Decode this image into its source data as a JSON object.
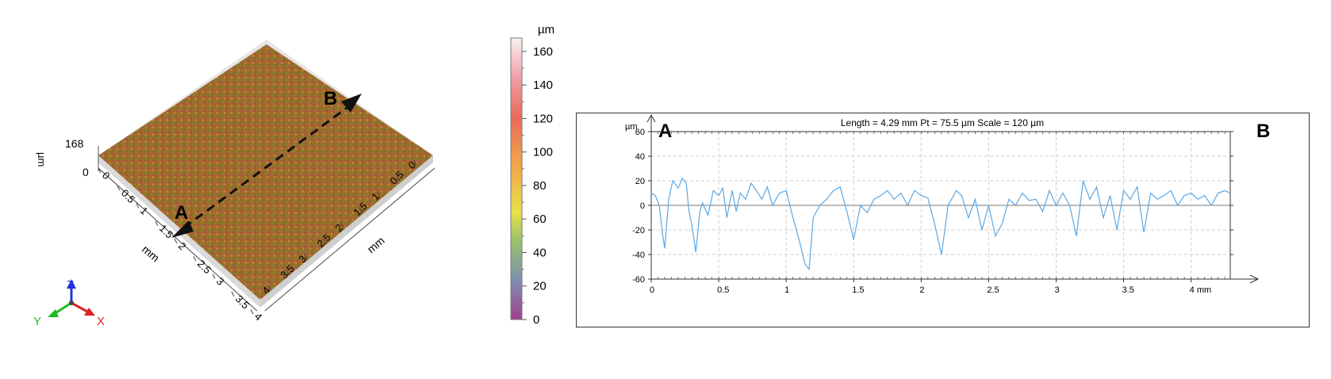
{
  "surface": {
    "z_axis": {
      "unit": "µm",
      "max_label": "168",
      "min_label": "0"
    },
    "left_axis": {
      "unit": "mm",
      "ticks": [
        "0",
        "0.5",
        "1",
        "1.5",
        "2",
        "2.5",
        "3",
        "3.5",
        "4"
      ]
    },
    "right_axis": {
      "unit": "mm",
      "ticks": [
        "0",
        "0.5",
        "1",
        "1.5",
        "2",
        "2.5",
        "3",
        "3.5",
        "4"
      ]
    },
    "point_a": "A",
    "point_b": "B",
    "triad": {
      "z": "Z",
      "y": "Y",
      "x": "X"
    },
    "colors": {
      "z": "#2233dd",
      "y": "#22bb22",
      "x": "#dd2222"
    }
  },
  "colorbar": {
    "unit": "µm",
    "ticks": [
      "160",
      "140",
      "120",
      "100",
      "80",
      "60",
      "40",
      "20",
      "0"
    ],
    "range": [
      0,
      168
    ],
    "colors": [
      "#a0408c",
      "#7f8fb0",
      "#9ac26a",
      "#e8e04a",
      "#f2a64a",
      "#e96a5a",
      "#f0a0a8",
      "#faf2f2"
    ]
  },
  "profile": {
    "header": "Length = 4.29 mm  Pt = 75.5 µm  Scale = 120 µm",
    "label_a": "A",
    "label_b": "B",
    "y_unit": "µm",
    "x_unit": "mm",
    "line_color": "#5aa8e6"
  },
  "chart_data": {
    "type": "line",
    "title": "Length = 4.29 mm  Pt = 75.5 µm  Scale = 120 µm",
    "xlabel": "mm",
    "ylabel": "µm",
    "xlim": [
      0,
      4.29
    ],
    "ylim": [
      -60,
      60
    ],
    "x_ticks": [
      0,
      0.5,
      1,
      1.5,
      2,
      2.5,
      3,
      3.5,
      4
    ],
    "y_ticks": [
      60,
      40,
      20,
      0,
      -20,
      -40,
      -60
    ],
    "x_tick_labels": [
      "0",
      "0.5",
      "1",
      "1.5",
      "2",
      "2.5",
      "3",
      "3.5",
      "4 mm"
    ],
    "y_tick_labels": [
      "60",
      "40",
      "20",
      "0",
      "-20",
      "-40",
      "-60"
    ],
    "grid": true,
    "series": [
      {
        "x": [
          0,
          0.03,
          0.06,
          0.08,
          0.1,
          0.13,
          0.16,
          0.2,
          0.23,
          0.26,
          0.28,
          0.3,
          0.33,
          0.36,
          0.38,
          0.42,
          0.46,
          0.5,
          0.53,
          0.56,
          0.6,
          0.63,
          0.66,
          0.7,
          0.74,
          0.78,
          0.82,
          0.86,
          0.9,
          0.95,
          1.0,
          1.05,
          1.1,
          1.14,
          1.17,
          1.2,
          1.25,
          1.3,
          1.35,
          1.4,
          1.45,
          1.5,
          1.55,
          1.6,
          1.65,
          1.7,
          1.75,
          1.8,
          1.85,
          1.9,
          1.95,
          2.0,
          2.05,
          2.1,
          2.15,
          2.2,
          2.26,
          2.3,
          2.35,
          2.4,
          2.45,
          2.5,
          2.55,
          2.6,
          2.65,
          2.7,
          2.75,
          2.8,
          2.85,
          2.9,
          2.95,
          3.0,
          3.05,
          3.1,
          3.15,
          3.2,
          3.25,
          3.3,
          3.35,
          3.4,
          3.45,
          3.5,
          3.55,
          3.6,
          3.65,
          3.7,
          3.75,
          3.8,
          3.85,
          3.9,
          3.95,
          4.0,
          4.05,
          4.1,
          4.15,
          4.2,
          4.25,
          4.29
        ],
        "y": [
          10,
          8,
          0,
          -20,
          -35,
          5,
          20,
          14,
          22,
          18,
          -5,
          -15,
          -38,
          -5,
          2,
          -8,
          12,
          8,
          14,
          -10,
          12,
          -5,
          10,
          5,
          18,
          12,
          5,
          15,
          0,
          10,
          12,
          -10,
          -30,
          -48,
          -52,
          -10,
          0,
          5,
          12,
          15,
          -5,
          -28,
          0,
          -6,
          5,
          8,
          12,
          5,
          10,
          0,
          12,
          8,
          6,
          -15,
          -40,
          0,
          12,
          8,
          -10,
          5,
          -20,
          0,
          -25,
          -15,
          5,
          0,
          10,
          4,
          5,
          -5,
          12,
          0,
          10,
          0,
          -25,
          20,
          5,
          15,
          -10,
          8,
          -20,
          12,
          5,
          15,
          -22,
          10,
          5,
          8,
          12,
          0,
          8,
          10,
          5,
          8,
          0,
          10,
          12,
          10
        ],
        "color": "#5aa8e6"
      }
    ]
  }
}
